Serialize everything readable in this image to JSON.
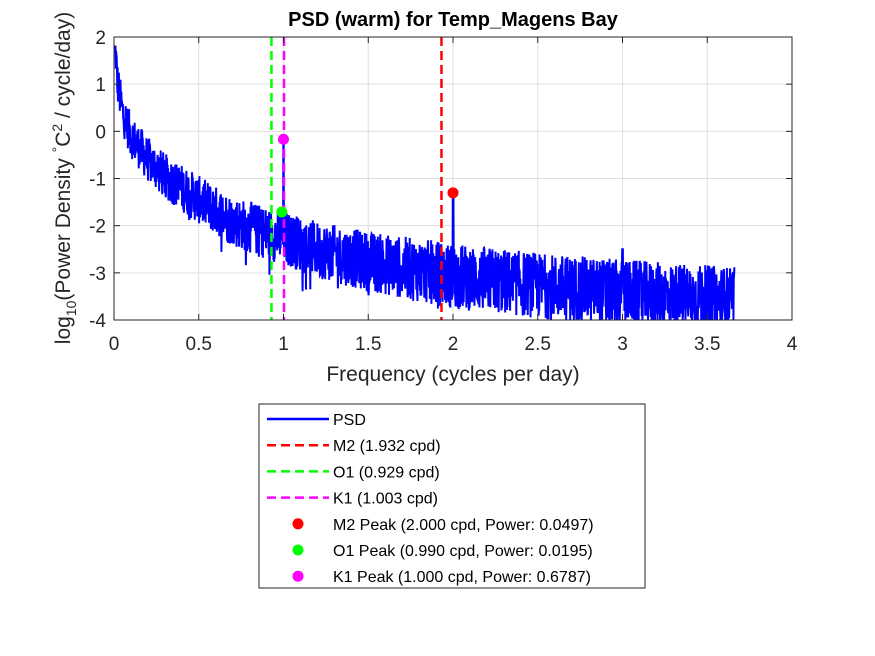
{
  "chart_data": {
    "type": "line",
    "title": "PSD (warm) for Temp_Magens Bay",
    "xlabel": "Frequency (cycles per day)",
    "ylabel": {
      "prefix": "log",
      "sub": "10",
      "mid": "(Power Density ",
      "deg": "°",
      "unit": "C",
      "sup": "2",
      "suffix": " / cycle/day)"
    },
    "xlim": [
      0,
      4
    ],
    "ylim": [
      -4,
      2
    ],
    "x_ticks": [
      0,
      0.5,
      1,
      1.5,
      2,
      2.5,
      3,
      3.5,
      4
    ],
    "x_tick_labels": [
      "0",
      "0.5",
      "1",
      "1.5",
      "2",
      "2.5",
      "3",
      "3.5",
      "4"
    ],
    "y_ticks": [
      -4,
      -3,
      -2,
      -1,
      0,
      1,
      2
    ],
    "y_tick_labels": [
      "-4",
      "-3",
      "-2",
      "-1",
      "0",
      "1",
      "2"
    ],
    "grid": true,
    "series": [
      {
        "name": "PSD",
        "color": "#0000ff",
        "x_max": 3.66,
        "trend_points": [
          [
            0.01,
            1.7
          ],
          [
            0.02,
            1.1
          ],
          [
            0.05,
            0.45
          ],
          [
            0.1,
            -0.05
          ],
          [
            0.2,
            -0.55
          ],
          [
            0.3,
            -0.9
          ],
          [
            0.5,
            -1.4
          ],
          [
            0.7,
            -1.85
          ],
          [
            0.9,
            -2.1
          ],
          [
            1.0,
            -2.2
          ],
          [
            1.2,
            -2.45
          ],
          [
            1.5,
            -2.7
          ],
          [
            2.0,
            -3.0
          ],
          [
            2.5,
            -3.2
          ],
          [
            3.0,
            -3.35
          ],
          [
            3.66,
            -3.5
          ]
        ],
        "spikes": [
          [
            1.0,
            -0.16
          ],
          [
            2.0,
            -1.3
          ],
          [
            3.0,
            -2.5
          ],
          [
            0.99,
            -1.72
          ]
        ]
      }
    ],
    "reference_lines": [
      {
        "name": "M2",
        "label": "M2 (1.932 cpd)",
        "x": 1.932,
        "color": "#ff0000"
      },
      {
        "name": "O1",
        "label": "O1 (0.929 cpd)",
        "x": 0.929,
        "color": "#00ff00"
      },
      {
        "name": "K1",
        "label": "K1 (1.003 cpd)",
        "x": 1.003,
        "color": "#ff00ff"
      }
    ],
    "peaks": [
      {
        "name": "M2",
        "label": "M2 Peak (2.000 cpd, Power: 0.0497)",
        "x": 2.0,
        "power": 0.0497,
        "color": "#ff0000"
      },
      {
        "name": "O1",
        "label": "O1 Peak (0.990 cpd, Power: 0.0195)",
        "x": 0.99,
        "power": 0.0195,
        "color": "#00ff00"
      },
      {
        "name": "K1",
        "label": "K1 Peak (1.000 cpd, Power: 0.6787)",
        "x": 1.0,
        "power": 0.6787,
        "color": "#ff00ff"
      }
    ],
    "legend": {
      "position": "below-axes",
      "entries": [
        {
          "kind": "solid-line",
          "color": "#0000ff",
          "label": "PSD"
        },
        {
          "kind": "dashed-line",
          "color": "#ff0000",
          "label": "M2 (1.932 cpd)"
        },
        {
          "kind": "dashed-line",
          "color": "#00ff00",
          "label": "O1 (0.929 cpd)"
        },
        {
          "kind": "dashed-line",
          "color": "#ff00ff",
          "label": "K1 (1.003 cpd)"
        },
        {
          "kind": "marker",
          "color": "#ff0000",
          "label": "M2 Peak (2.000 cpd, Power: 0.0497)"
        },
        {
          "kind": "marker",
          "color": "#00ff00",
          "label": "O1 Peak (0.990 cpd, Power: 0.0195)"
        },
        {
          "kind": "marker",
          "color": "#ff00ff",
          "label": "K1 Peak (1.000 cpd, Power: 0.6787)"
        }
      ]
    }
  }
}
